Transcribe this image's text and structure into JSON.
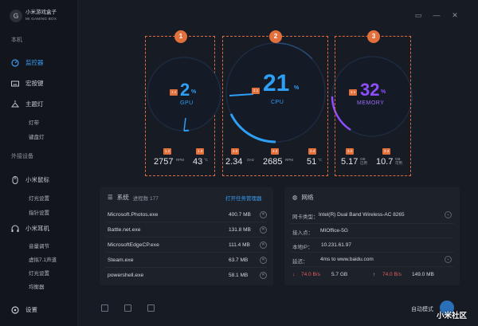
{
  "app": {
    "name_cn": "小米游戏盒子",
    "name_en": "MI GAMING BOX"
  },
  "sidebar": {
    "section_local": "本机",
    "monitor": "监控器",
    "macro": "宏按键",
    "theme_light": "主题灯",
    "light_band": "灯带",
    "keyboard_light": "键盘灯",
    "section_peripheral": "外接设备",
    "mouse": "小米鼠标",
    "mouse_light": "灯光设置",
    "mouse_pointer": "指针设置",
    "headset": "小米耳机",
    "volume": "音量调节",
    "virtual71": "虚拟7.1声道",
    "headset_light": "灯光设置",
    "equalizer": "均衡器",
    "settings": "设置"
  },
  "panels": {
    "gpu": {
      "badge": "1",
      "tag": "1.1",
      "value": "2",
      "pct": "%",
      "name": "GPU",
      "rpm_tag": "1.2",
      "rpm": "2757",
      "rpm_unit": "RPM",
      "temp_tag": "1.3",
      "temp": "43",
      "temp_unit": "°C",
      "usage_fraction": 0.02
    },
    "cpu": {
      "badge": "2",
      "tag": "2.1",
      "value": "21",
      "pct": "%",
      "name": "CPU",
      "ghz_tag": "2.2",
      "ghz": "2.34",
      "ghz_unit": "GHz",
      "rpm_tag": "2.3",
      "rpm": "2685",
      "rpm_unit": "RPM",
      "temp_tag": "2.4",
      "temp": "51",
      "temp_unit": "°C",
      "usage_fraction": 0.21
    },
    "memory": {
      "badge": "3",
      "tag": "3.1",
      "value": "32",
      "pct": "%",
      "name": "MEMORY",
      "used_tag": "3.2",
      "used": "5.17",
      "used_unit1": "GB",
      "used_unit2": "已用",
      "avail_tag": "3.3",
      "avail": "10.7",
      "avail_unit1": "GB",
      "avail_unit2": "可用",
      "usage_fraction": 0.32
    }
  },
  "system": {
    "title": "系统",
    "count_label": "进程数 177",
    "open_task_manager": "打开任务管理器",
    "processes": [
      {
        "name": "Microsoft.Photos.exe",
        "mem": "400.7 MB"
      },
      {
        "name": "Battle.net.exe",
        "mem": "131.8 MB"
      },
      {
        "name": "MicrosoftEdgeCP.exe",
        "mem": "111.4 MB"
      },
      {
        "name": "Steam.exe",
        "mem": "63.7 MB"
      },
      {
        "name": "powershell.exe",
        "mem": "58.1 MB"
      }
    ]
  },
  "network": {
    "title": "网络",
    "rows": [
      {
        "label": "网卡类型：",
        "value": "Intel(R) Dual Band Wireless-AC 8265"
      },
      {
        "label": "接入点：",
        "value": "MIOffice-5G"
      },
      {
        "label": "本地IP：",
        "value": "10.231.61.97"
      },
      {
        "label": "延迟：",
        "value": "4ms to www.baidu.com"
      }
    ],
    "down_speed": "74.0 B/s",
    "down_total": "5.7 GB",
    "up_speed": "74.0 B/s",
    "up_total": "149.0 MB"
  },
  "footer": {
    "mode": "自动模式",
    "watermark": "小米社区"
  },
  "colors": {
    "accent": "#2f9ff5",
    "annotation": "#e2703c",
    "memory": "#8f4fff"
  }
}
